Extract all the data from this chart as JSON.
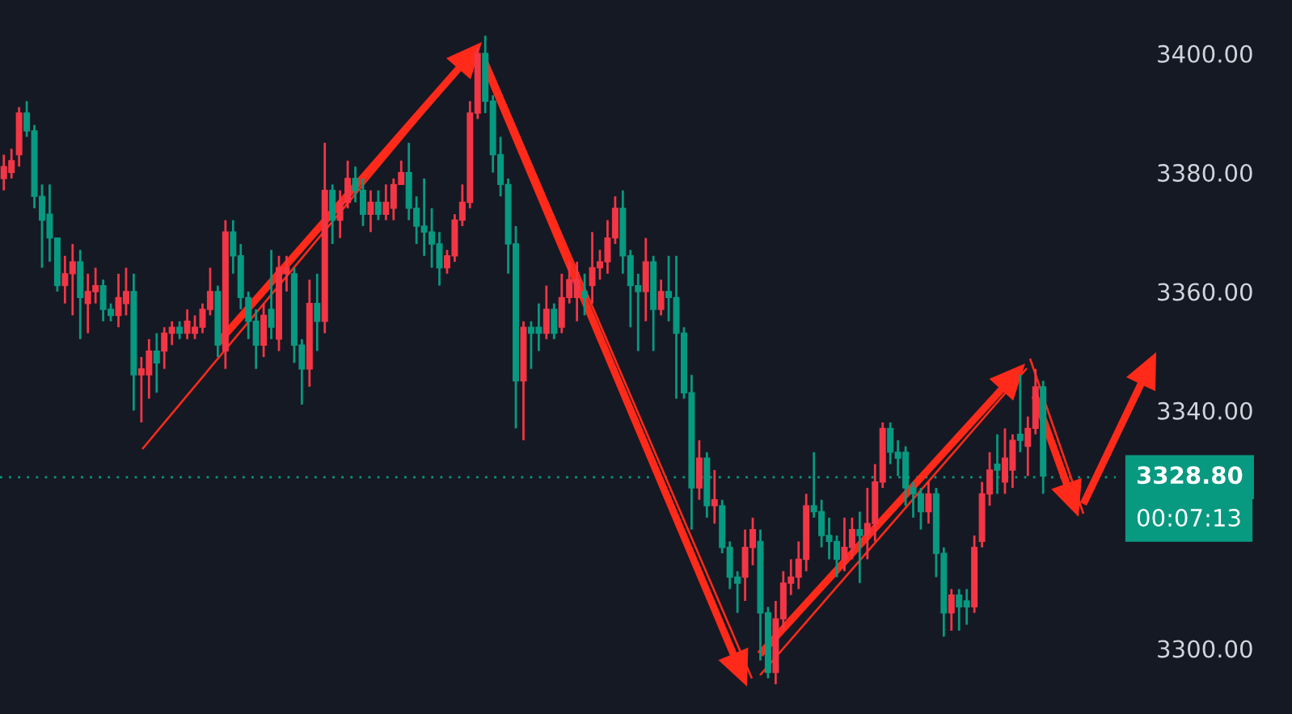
{
  "chart_data": {
    "type": "candlestick",
    "categories": [
      null,
      null,
      null,
      null,
      null,
      null,
      null,
      null,
      null,
      null,
      null,
      null,
      null,
      null,
      null,
      null,
      null,
      null,
      null,
      null,
      null,
      null,
      null,
      null,
      null,
      null,
      null,
      null,
      null,
      null,
      null,
      null,
      null,
      null,
      null,
      null,
      null,
      null,
      null,
      null,
      null,
      null,
      null,
      null,
      null,
      null,
      null,
      null,
      null,
      null,
      null,
      null,
      null,
      null,
      null,
      null,
      null,
      null,
      null,
      null,
      null,
      null,
      null,
      null,
      null,
      null,
      null,
      null,
      null,
      null,
      null,
      null,
      null,
      null,
      null,
      null,
      null,
      null,
      null,
      null,
      null,
      null,
      null,
      null,
      null,
      null,
      null,
      null,
      null,
      null,
      null,
      null,
      null,
      null,
      null,
      null,
      null,
      null,
      null,
      null,
      null,
      null,
      null,
      null,
      null,
      null,
      null,
      null,
      null,
      null,
      null,
      null,
      null,
      null,
      null,
      null,
      null,
      null,
      null,
      null,
      null,
      null,
      null,
      null,
      null,
      null,
      null,
      null,
      null,
      null,
      null,
      null,
      null,
      null,
      null,
      null,
      null,
      null,
      null,
      null,
      null,
      null,
      null,
      null,
      null,
      null
    ],
    "ohlc": [
      [
        3379,
        3383,
        3377,
        3381
      ],
      [
        3380,
        3384,
        3379,
        3382
      ],
      [
        3383,
        3391,
        3381,
        3390
      ],
      [
        3390,
        3392,
        3386,
        3387
      ],
      [
        3387,
        3388,
        3374,
        3376
      ],
      [
        3376,
        3378,
        3364,
        3372
      ],
      [
        3373,
        3378,
        3365,
        3369
      ],
      [
        3369,
        3369,
        3360,
        3361
      ],
      [
        3361,
        3366,
        3358,
        3363
      ],
      [
        3363,
        3368,
        3356,
        3365
      ],
      [
        3365,
        3367,
        3352,
        3359
      ],
      [
        3358,
        3363,
        3353,
        3360
      ],
      [
        3360,
        3364,
        3358,
        3361
      ],
      [
        3361,
        3362,
        3355,
        3357
      ],
      [
        3357,
        3358,
        3355,
        3356
      ],
      [
        3356,
        3363,
        3354,
        3359
      ],
      [
        3358,
        3364,
        3356,
        3360
      ],
      [
        3360,
        3363,
        3340,
        3346
      ],
      [
        3346,
        3349,
        3338,
        3347
      ],
      [
        3346,
        3352,
        3342,
        3350
      ],
      [
        3350,
        3353,
        3343,
        3348
      ],
      [
        3350,
        3354,
        3347,
        3353
      ],
      [
        3353,
        3355,
        3351,
        3354
      ],
      [
        3354,
        3355,
        3352,
        3353
      ],
      [
        3353,
        3357,
        3352,
        3355
      ],
      [
        3353,
        3356,
        3352,
        3354
      ],
      [
        3354,
        3358,
        3353,
        3357
      ],
      [
        3357,
        3364,
        3356,
        3360
      ],
      [
        3360,
        3361,
        3349,
        3351
      ],
      [
        3350,
        3372,
        3347,
        3370
      ],
      [
        3370,
        3372,
        3363,
        3366
      ],
      [
        3366,
        3368,
        3357,
        3359
      ],
      [
        3359,
        3360,
        3352,
        3355
      ],
      [
        3355,
        3357,
        3347,
        3351
      ],
      [
        3351,
        3358,
        3349,
        3356
      ],
      [
        3357,
        3367,
        3352,
        3354
      ],
      [
        3352,
        3366,
        3350,
        3364
      ],
      [
        3363,
        3366,
        3360,
        3364
      ],
      [
        3363,
        3364,
        3348,
        3351
      ],
      [
        3351,
        3352,
        3341,
        3347
      ],
      [
        3347,
        3362,
        3344,
        3358
      ],
      [
        3358,
        3363,
        3350,
        3355
      ],
      [
        3355,
        3385,
        3353,
        3377
      ],
      [
        3377,
        3378,
        3368,
        3372
      ],
      [
        3372,
        3377,
        3369,
        3375
      ],
      [
        3375,
        3382,
        3374,
        3379
      ],
      [
        3379,
        3381,
        3375,
        3377
      ],
      [
        3377,
        3379,
        3371,
        3373
      ],
      [
        3373,
        3377,
        3370,
        3375
      ],
      [
        3375,
        3377,
        3372,
        3373
      ],
      [
        3373,
        3378,
        3372,
        3375
      ],
      [
        3374,
        3379,
        3372,
        3378
      ],
      [
        3378,
        3382,
        3378,
        3380
      ],
      [
        3380,
        3385,
        3372,
        3374
      ],
      [
        3374,
        3376,
        3368,
        3371
      ],
      [
        3371,
        3379,
        3366,
        3370
      ],
      [
        3370,
        3374,
        3364,
        3368
      ],
      [
        3368,
        3370,
        3361,
        3364
      ],
      [
        3364,
        3367,
        3363,
        3366
      ],
      [
        3366,
        3373,
        3365,
        3372
      ],
      [
        3372,
        3378,
        3371,
        3375
      ],
      [
        3375,
        3392,
        3374,
        3390
      ],
      [
        3390,
        3401,
        3389,
        3400
      ],
      [
        3400,
        3403,
        3390,
        3392
      ],
      [
        3392,
        3393,
        3380,
        3383
      ],
      [
        3383,
        3386,
        3376,
        3378
      ],
      [
        3378,
        3379,
        3363,
        3368
      ],
      [
        3368,
        3371,
        3337,
        3345
      ],
      [
        3345,
        3355,
        3335,
        3354
      ],
      [
        3354,
        3355,
        3347,
        3353
      ],
      [
        3354,
        3358,
        3350,
        3353
      ],
      [
        3353,
        3361,
        3352,
        3357
      ],
      [
        3357,
        3358,
        3352,
        3353
      ],
      [
        3354,
        3363,
        3353,
        3359
      ],
      [
        3359,
        3365,
        3358,
        3362
      ],
      [
        3359,
        3365,
        3355,
        3362
      ],
      [
        3360,
        3363,
        3356,
        3359
      ],
      [
        3361,
        3370,
        3358,
        3364
      ],
      [
        3364,
        3367,
        3362,
        3365
      ],
      [
        3365,
        3372,
        3363,
        3369
      ],
      [
        3369,
        3376,
        3368,
        3374
      ],
      [
        3374,
        3377,
        3363,
        3366
      ],
      [
        3366,
        3367,
        3354,
        3361
      ],
      [
        3361,
        3363,
        3350,
        3360
      ],
      [
        3360,
        3369,
        3355,
        3365
      ],
      [
        3365,
        3366,
        3350,
        3357
      ],
      [
        3357,
        3362,
        3356,
        3360
      ],
      [
        3360,
        3366,
        3355,
        3359
      ],
      [
        3359,
        3366,
        3342,
        3353
      ],
      [
        3353,
        3354,
        3342,
        3343
      ],
      [
        3343,
        3346,
        3320,
        3327
      ],
      [
        3327,
        3335,
        3325,
        3332
      ],
      [
        3332,
        3333,
        3322,
        3324
      ],
      [
        3324,
        3330,
        3321,
        3325
      ],
      [
        3324,
        3325,
        3316,
        3317
      ],
      [
        3317,
        3318,
        3310,
        3312
      ],
      [
        3312,
        3313,
        3306,
        3311
      ],
      [
        3312,
        3320,
        3308,
        3317
      ],
      [
        3317,
        3322,
        3314,
        3320
      ],
      [
        3318,
        3320,
        3298,
        3306
      ],
      [
        3306,
        3307,
        3295,
        3296
      ],
      [
        3296,
        3308,
        3294,
        3305
      ],
      [
        3305,
        3313,
        3303,
        3311
      ],
      [
        3311,
        3315,
        3309,
        3312
      ],
      [
        3312,
        3318,
        3310,
        3315
      ],
      [
        3315,
        3326,
        3313,
        3324
      ],
      [
        3324,
        3333,
        3322,
        3323
      ],
      [
        3323,
        3325,
        3317,
        3319
      ],
      [
        3319,
        3322,
        3315,
        3318
      ],
      [
        3318,
        3319,
        3312,
        3315
      ],
      [
        3315,
        3322,
        3313,
        3317
      ],
      [
        3317,
        3322,
        3315,
        3320
      ],
      [
        3320,
        3323,
        3311,
        3319
      ],
      [
        3319,
        3327,
        3315,
        3321
      ],
      [
        3321,
        3331,
        3318,
        3328
      ],
      [
        3328,
        3338,
        3327,
        3337
      ],
      [
        3337,
        3338,
        3331,
        3333
      ],
      [
        3333,
        3335,
        3329,
        3332
      ],
      [
        3333,
        3334,
        3324,
        3327
      ],
      [
        3327,
        3328,
        3322,
        3326
      ],
      [
        3326,
        3327,
        3320,
        3323
      ],
      [
        3323,
        3328,
        3321,
        3326
      ],
      [
        3326,
        3327,
        3312,
        3316
      ],
      [
        3316,
        3317,
        3302,
        3306
      ],
      [
        3306,
        3310,
        3303,
        3309
      ],
      [
        3309,
        3310,
        3303,
        3307
      ],
      [
        3308,
        3310,
        3304,
        3307
      ],
      [
        3307,
        3319,
        3306,
        3317
      ],
      [
        3318,
        3328,
        3317,
        3326
      ],
      [
        3326,
        3333,
        3324,
        3330
      ],
      [
        3331,
        3336,
        3326,
        3330
      ],
      [
        3328,
        3337,
        3326,
        3332
      ],
      [
        3330,
        3336,
        3327,
        3335
      ],
      [
        3336,
        3346,
        3333,
        3335
      ],
      [
        3334,
        3339,
        3329,
        3337
      ],
      [
        3337,
        3347,
        3336,
        3344
      ],
      [
        3344,
        3345,
        3326,
        3329
      ],
      null,
      null,
      null,
      null,
      null,
      null,
      null,
      null,
      null
    ],
    "colors": [
      "#f23645",
      "#f23645",
      "#f23645",
      "#089981",
      "#089981",
      "#089981",
      "#089981",
      "#089981",
      "#f23645",
      "#f23645",
      "#089981",
      "#f23645",
      "#f23645",
      "#089981",
      "#089981",
      "#f23645",
      "#f23645",
      "#089981",
      "#f23645",
      "#f23645",
      "#089981",
      "#f23645",
      "#f23645",
      "#089981",
      "#f23645",
      "#f23645",
      "#f23645",
      "#f23645",
      "#089981",
      "#f23645",
      "#089981",
      "#089981",
      "#089981",
      "#089981",
      "#f23645",
      "#089981",
      "#f23645",
      "#f23645",
      "#089981",
      "#089981",
      "#f23645",
      "#089981",
      "#f23645",
      "#089981",
      "#f23645",
      "#f23645",
      "#089981",
      "#089981",
      "#f23645",
      "#089981",
      "#f23645",
      "#f23645",
      "#f23645",
      "#089981",
      "#089981",
      "#089981",
      "#089981",
      "#089981",
      "#f23645",
      "#f23645",
      "#f23645",
      "#f23645",
      "#f23645",
      "#089981",
      "#089981",
      "#089981",
      "#089981",
      "#089981",
      "#f23645",
      "#089981",
      "#089981",
      "#f23645",
      "#089981",
      "#f23645",
      "#f23645",
      "#f23645",
      "#089981",
      "#f23645",
      "#f23645",
      "#f23645",
      "#f23645",
      "#089981",
      "#089981",
      "#089981",
      "#f23645",
      "#089981",
      "#f23645",
      "#089981",
      "#089981",
      "#089981",
      "#089981",
      "#f23645",
      "#089981",
      "#f23645",
      "#089981",
      "#089981",
      "#089981",
      "#f23645",
      "#f23645",
      "#089981",
      "#089981",
      "#f23645",
      "#f23645",
      "#f23645",
      "#f23645",
      "#f23645",
      "#089981",
      "#089981",
      "#089981",
      "#089981",
      "#f23645",
      "#f23645",
      "#089981",
      "#f23645",
      "#f23645",
      "#f23645",
      "#089981",
      "#089981",
      "#089981",
      "#089981",
      "#089981",
      "#f23645",
      "#089981",
      "#089981",
      "#f23645",
      "#089981",
      "#089981",
      "#f23645",
      "#f23645",
      "#f23645",
      "#089981",
      "#f23645",
      "#f23645",
      "#089981",
      "#f23645",
      "#f23645",
      "#089981",
      null,
      null,
      null,
      null,
      null,
      null,
      null,
      null,
      null
    ],
    "ylim": [
      3289,
      3409
    ],
    "yticks": [
      {
        "value": 3300,
        "label": "3300.00"
      },
      {
        "value": 3340,
        "label": "3340.00"
      },
      {
        "value": 3360,
        "label": "3360.00"
      },
      {
        "value": 3380,
        "label": "3380.00"
      },
      {
        "value": 3400,
        "label": "3400.00"
      }
    ],
    "ref_lines": [
      {
        "axis": "y",
        "value": 3328.8,
        "label": "3328.80",
        "color": "#089981",
        "line_style": "dotted"
      }
    ],
    "annotations": [
      "00:07:13"
    ],
    "tick_labels": "y",
    "grid": false,
    "legend": false
  }
}
